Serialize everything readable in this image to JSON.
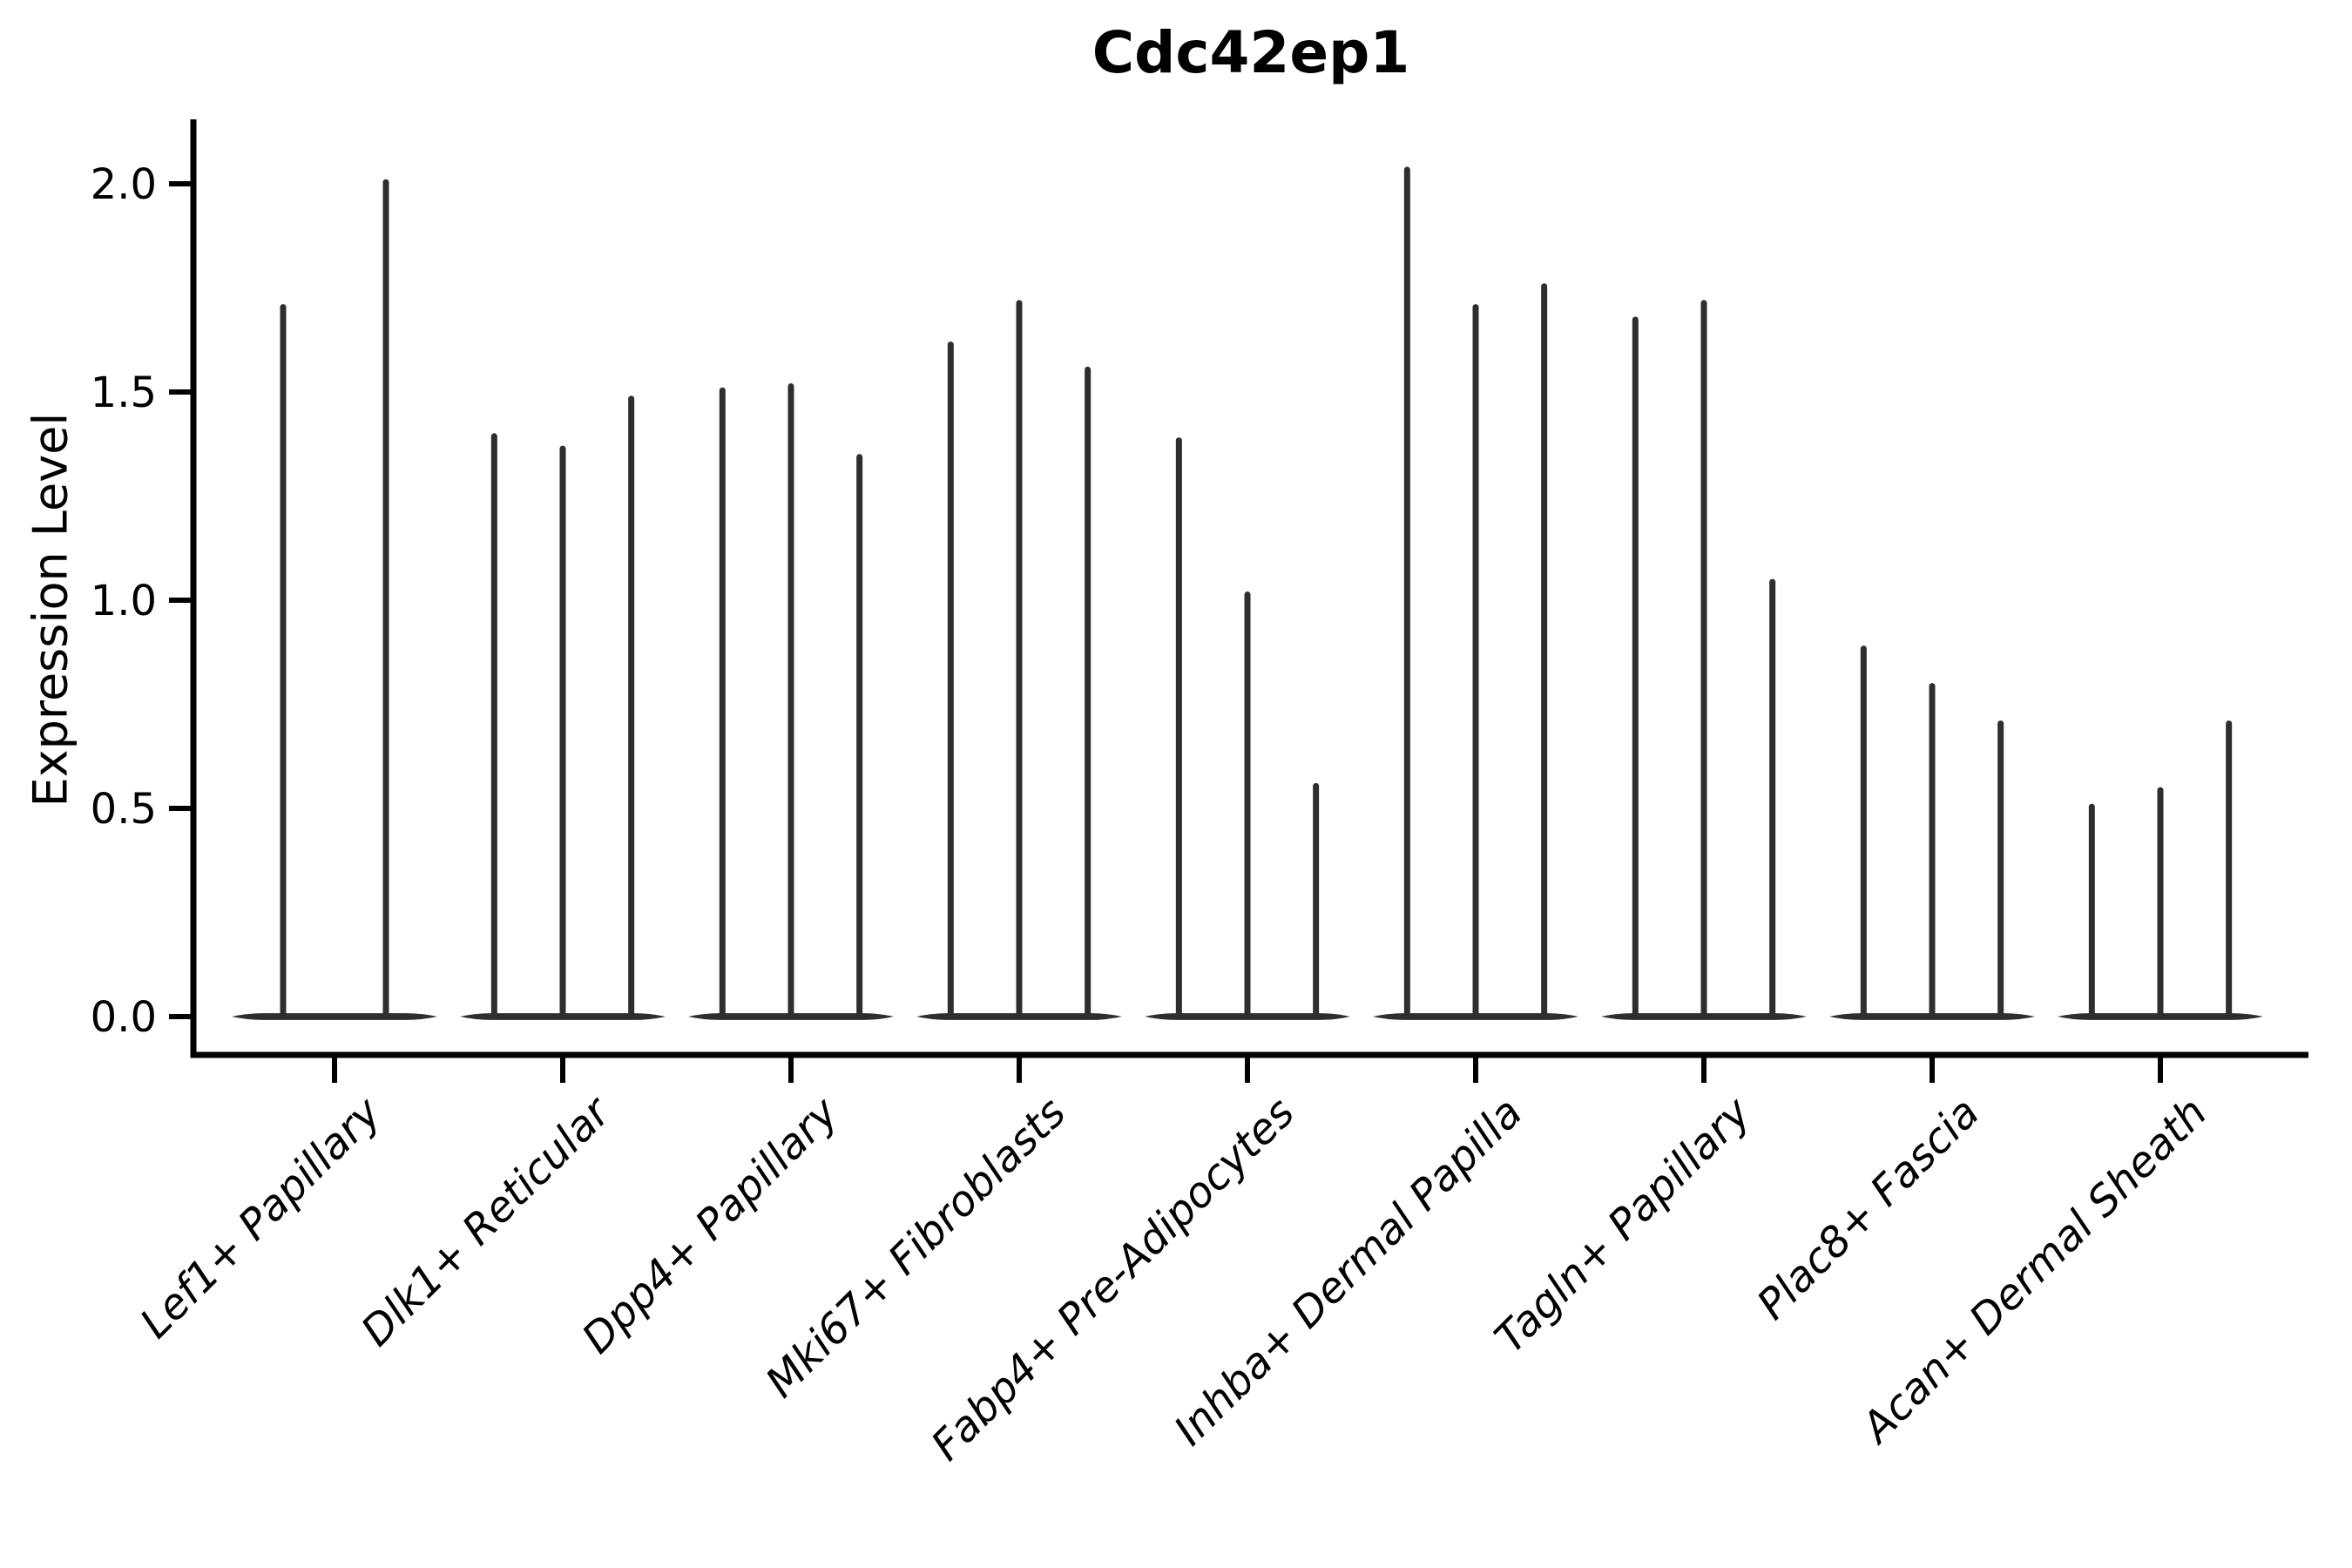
{
  "title": "Cdc42ep1",
  "axes": {
    "ylabel": "Expression Level",
    "ytick_labels": [
      "0.0",
      "0.5",
      "1.0",
      "1.5",
      "2.0"
    ],
    "ytick_values": [
      0.0,
      0.5,
      1.0,
      1.5,
      2.0
    ]
  },
  "colors": {
    "violin": "#2e2e2e",
    "axis": "#000000",
    "background": "#ffffff"
  },
  "chart_data": {
    "type": "violin",
    "title": "Cdc42ep1",
    "xlabel": "",
    "ylabel": "Expression Level",
    "ylim": [
      -0.1,
      2.15
    ],
    "yticks": [
      0.0,
      0.5,
      1.0,
      1.5,
      2.0
    ],
    "grid": false,
    "legend": "none",
    "description": "Single-cell expression violin plot; each violin is collapsed at 0 (wide flat base) with a very thin tail rising to the maximum expression value. Several violins are drawn side by side within each cell-type group.",
    "categories": [
      "Lef1+ Papillary",
      "Dlk1+ Reticular",
      "Dpp4+ Papillary",
      "Mki67+ Fibroblasts",
      "Fabp4+ Pre-Adipocytes",
      "Inhba+ Dermal Papilla",
      "Tagln+ Papillary",
      "Plac8+ Fascia",
      "Acan+ Dermal Sheath"
    ],
    "groups": [
      {
        "label": "Lef1+ Papillary",
        "violin_max_values": [
          1.71,
          2.01
        ]
      },
      {
        "label": "Dlk1+ Reticular",
        "violin_max_values": [
          1.4,
          1.37,
          1.49
        ]
      },
      {
        "label": "Dpp4+ Papillary",
        "violin_max_values": [
          1.51,
          1.52,
          1.35
        ]
      },
      {
        "label": "Mki67+ Fibroblasts",
        "violin_max_values": [
          1.62,
          1.72,
          1.56
        ]
      },
      {
        "label": "Fabp4+ Pre-Adipocytes",
        "violin_max_values": [
          1.39,
          1.02,
          0.56
        ]
      },
      {
        "label": "Inhba+ Dermal Papilla",
        "violin_max_values": [
          2.04,
          1.71,
          1.76
        ]
      },
      {
        "label": "Tagln+ Papillary",
        "violin_max_values": [
          1.68,
          1.72,
          1.05
        ]
      },
      {
        "label": "Plac8+ Fascia",
        "violin_max_values": [
          0.89,
          0.8,
          0.71
        ]
      },
      {
        "label": "Acan+ Dermal Sheath",
        "violin_max_values": [
          0.51,
          0.55,
          0.71
        ]
      }
    ]
  }
}
